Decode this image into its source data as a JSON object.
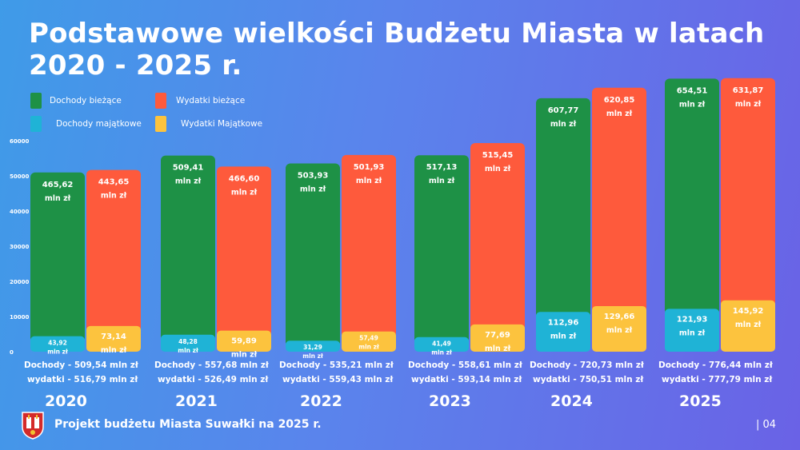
{
  "title": "Podstawowe wielkości Budżetu Miasta w latach 2020 - 2025 r.",
  "colors": {
    "dochody_biezace": "#1e9146",
    "wydatki_biezace": "#fe5a3c",
    "dochody_majatkowe": "#1fb3d6",
    "wydatki_majatkowe": "#fcc33e"
  },
  "legend": [
    {
      "label": "Dochody bieżące",
      "color_key": "dochody_biezace"
    },
    {
      "label": "Wydatki bieżące",
      "color_key": "wydatki_biezace"
    },
    {
      "label": "Dochody majątkowe",
      "color_key": "dochody_majatkowe"
    },
    {
      "label": "Wydatki Majątkowe",
      "color_key": "wydatki_majatkowe"
    }
  ],
  "chart_data": {
    "type": "bar",
    "stacked": true,
    "categories": [
      "2020",
      "2021",
      "2022",
      "2023",
      "2024",
      "2025"
    ],
    "yticks": [
      "60000",
      "50000",
      "40000",
      "30000",
      "20000",
      "10000",
      "0"
    ],
    "ylim": [
      0,
      60000
    ],
    "unit_label": "mln zł",
    "groups": [
      {
        "year": "2020",
        "dochody_majatkowe": "43,92",
        "dochody_biezace": "465,62",
        "wydatki_majatkowe": "73,14",
        "wydatki_biezace": "443,65",
        "dochody_summary": "Dochody - 509,54 mln zł",
        "wydatki_summary": "wydatki - 516,79 mln zł"
      },
      {
        "year": "2021",
        "dochody_majatkowe": "48,28",
        "dochody_biezace": "509,41",
        "wydatki_majatkowe": "59,89",
        "wydatki_biezace": "466,60",
        "dochody_summary": "Dochody - 557,68 mln zł",
        "wydatki_summary": "wydatki - 526,49 mln zł"
      },
      {
        "year": "2022",
        "dochody_majatkowe": "31,29",
        "dochody_biezace": "503,93",
        "wydatki_majatkowe": "57,49",
        "wydatki_biezace": "501,93",
        "dochody_summary": "Dochody - 535,21 mln zł",
        "wydatki_summary": "wydatki - 559,43 mln zł"
      },
      {
        "year": "2023",
        "dochody_majatkowe": "41,49",
        "dochody_biezace": "517,13",
        "wydatki_majatkowe": "77,69",
        "wydatki_biezace": "515,45",
        "dochody_summary": "Dochody - 558,61 mln zł",
        "wydatki_summary": "wydatki - 593,14 mln zł"
      },
      {
        "year": "2024",
        "dochody_majatkowe": "112,96",
        "dochody_biezace": "607,77",
        "wydatki_majatkowe": "129,66",
        "wydatki_biezace": "620,85",
        "dochody_summary": "Dochody - 720,73 mln zł",
        "wydatki_summary": "wydatki - 750,51  mln zł"
      },
      {
        "year": "2025",
        "dochody_majatkowe": "121,93",
        "dochody_biezace": "654,51",
        "wydatki_majatkowe": "145,92",
        "wydatki_biezace": "631,87",
        "dochody_summary": "Dochody - 776,44 mln zł",
        "wydatki_summary": "wydatki - 777,79 mln zł"
      }
    ]
  },
  "footer": {
    "text": "Projekt budżetu Miasta Suwałki na 2025 r.",
    "page_number": "| 04",
    "crest_icon": "city-crest-icon"
  }
}
